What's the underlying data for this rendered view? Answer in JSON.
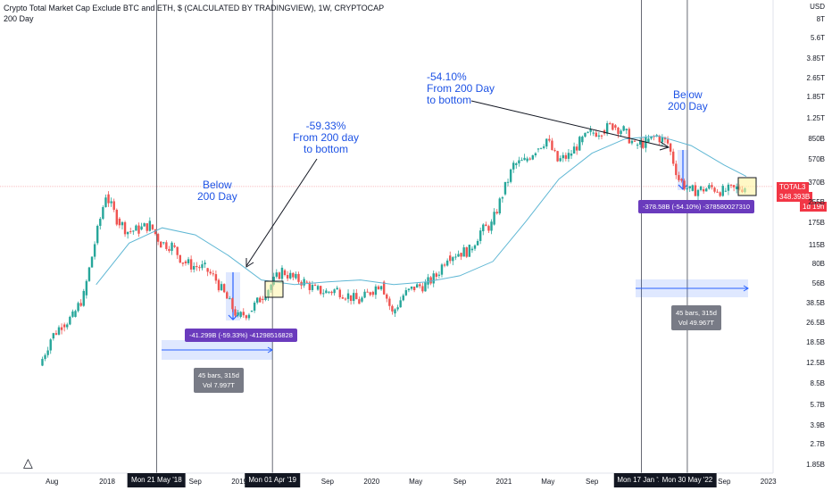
{
  "header": {
    "title": "Crypto Total Market Cap Exclude BTC and ETH, $ (CALCULATED BY TRADINGVIEW), 1W, CRYPTOCAP",
    "indicator": "200 Day"
  },
  "annotations": {
    "left_below": [
      "Below",
      "200 Day"
    ],
    "left_drop": [
      "-59.33%",
      "From 200 day",
      "to bottom"
    ],
    "right_drop": [
      "-54.10%",
      "From 200 Day",
      "to bottom"
    ],
    "right_below": [
      "Below",
      "200 Day"
    ]
  },
  "measure_tags": {
    "left_price": "-41.299B (-59.33%) -41298516828",
    "left_range": [
      "45 bars, 315d",
      "Vol 7.997T"
    ],
    "right_price": "-378.58B (-54.10%) -378580027310",
    "right_range": [
      "45 bars, 315d",
      "Vol 49.967T"
    ]
  },
  "price_label": {
    "symbol": "TOTAL3",
    "value": "348.393B",
    "countdown": "1d 19h"
  },
  "colors": {
    "up": "#26a69a",
    "down": "#ef5350",
    "ma": "#5fb7d4",
    "accent_blue": "#1e53e5",
    "measure_purple": "#6a3bbd",
    "current_price": "#f23645"
  },
  "chart_data": {
    "type": "line",
    "title": "Crypto Total Market Cap Exclude BTC and ETH, $ (CALCULATED BY TRADINGVIEW), 1W, CRYPTOCAP",
    "ylabel": "USD",
    "yscale": "log",
    "y_ticks": [
      "1.85B",
      "2.7B",
      "3.9B",
      "5.7B",
      "8.5B",
      "12.5B",
      "18.5B",
      "26.5B",
      "38.5B",
      "56B",
      "80B",
      "115B",
      "175B",
      "255B",
      "370B",
      "570B",
      "850B",
      "1.25T",
      "1.85T",
      "2.65T",
      "3.85T",
      "5.6T",
      "8T"
    ],
    "x_ticks": [
      "Aug",
      "2018",
      "Mon 21 May '18",
      "Sep",
      "2019",
      "Mon 01 Apr '19",
      "Sep",
      "2020",
      "May",
      "Sep",
      "2021",
      "May",
      "Sep",
      "Mon 17 Jan '22",
      "Mon 30 May '22",
      "Sep",
      "2023"
    ],
    "x_ticks_highlighted": [
      "Mon 21 May '18",
      "Mon 01 Apr '19",
      "Mon 17 Jan '22",
      "Mon 30 May '22"
    ],
    "series": [
      {
        "name": "TOTAL3",
        "x": [
          "2017-07",
          "2017-08",
          "2017-09",
          "2017-10",
          "2017-11",
          "2017-12",
          "2018-01",
          "2018-02",
          "2018-03",
          "2018-04",
          "2018-05",
          "2018-06",
          "2018-07",
          "2018-08",
          "2018-09",
          "2018-10",
          "2018-11",
          "2018-12",
          "2019-01",
          "2019-02",
          "2019-03",
          "2019-04",
          "2019-05",
          "2019-06",
          "2019-07",
          "2019-08",
          "2019-09",
          "2019-10",
          "2019-11",
          "2019-12",
          "2020-01",
          "2020-02",
          "2020-03",
          "2020-04",
          "2020-05",
          "2020-06",
          "2020-07",
          "2020-08",
          "2020-09",
          "2020-10",
          "2020-11",
          "2020-12",
          "2021-01",
          "2021-02",
          "2021-03",
          "2021-04",
          "2021-05",
          "2021-06",
          "2021-07",
          "2021-08",
          "2021-09",
          "2021-10",
          "2021-11",
          "2021-12",
          "2022-01",
          "2022-02",
          "2022-03",
          "2022-04",
          "2022-05",
          "2022-06",
          "2022-07",
          "2022-08",
          "2022-09",
          "2022-10",
          "2022-11"
        ],
        "values": [
          12,
          20,
          26,
          30,
          45,
          120,
          300,
          190,
          150,
          155,
          170,
          120,
          115,
          85,
          78,
          75,
          60,
          42,
          30,
          33,
          42,
          55,
          72,
          62,
          58,
          50,
          48,
          50,
          45,
          40,
          48,
          58,
          32,
          45,
          52,
          55,
          65,
          95,
          100,
          105,
          150,
          170,
          300,
          520,
          560,
          700,
          850,
          560,
          620,
          800,
          950,
          1000,
          1100,
          1000,
          750,
          800,
          900,
          780,
          400,
          320,
          330,
          340,
          320,
          330,
          348
        ]
      },
      {
        "name": "200 Day",
        "x": [
          "2017-12",
          "2018-03",
          "2018-06",
          "2018-09",
          "2018-12",
          "2019-03",
          "2019-06",
          "2019-09",
          "2019-12",
          "2020-03",
          "2020-06",
          "2020-09",
          "2020-12",
          "2021-03",
          "2021-06",
          "2021-09",
          "2021-12",
          "2022-03",
          "2022-06",
          "2022-09",
          "2022-11"
        ],
        "values": [
          55,
          120,
          160,
          140,
          95,
          60,
          55,
          58,
          60,
          55,
          58,
          65,
          85,
          180,
          400,
          650,
          850,
          900,
          750,
          520,
          420
        ]
      }
    ]
  }
}
